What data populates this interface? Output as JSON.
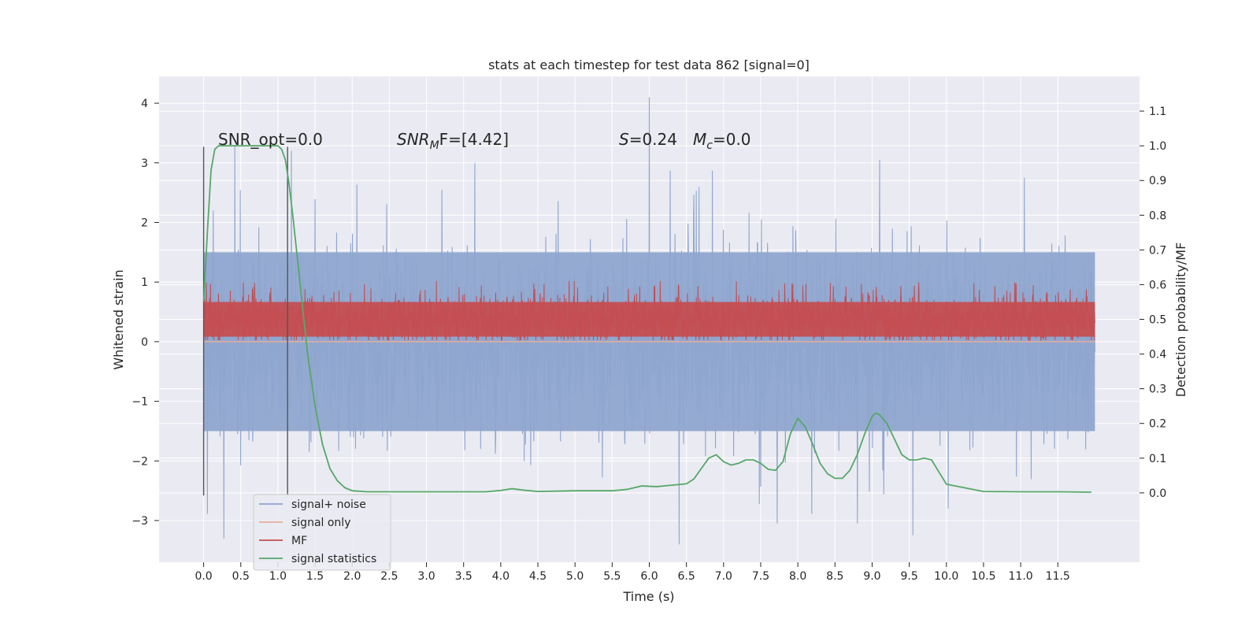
{
  "chart_data": {
    "type": "line",
    "title": "stats at each timestep for test data 862 [signal=0]",
    "xlabel": "Time (s)",
    "ylabel_left": "Whitened strain",
    "ylabel_right": "Detection probability/MF",
    "xlim": [
      -0.6,
      12.6
    ],
    "ylim_left": [
      -3.7,
      4.45
    ],
    "ylim_right": [
      -0.2,
      1.2
    ],
    "x_ticks": [
      0.0,
      0.5,
      1.0,
      1.5,
      2.0,
      2.5,
      3.0,
      3.5,
      4.0,
      4.5,
      5.0,
      5.5,
      6.0,
      6.5,
      7.0,
      7.5,
      8.0,
      8.5,
      9.0,
      9.5,
      10.0,
      10.5,
      11.0,
      11.5
    ],
    "x_tick_labels": [
      "0.0",
      "0.5",
      "1.0",
      "1.5",
      "2.0",
      "2.5",
      "3.0",
      "3.5",
      "4.0",
      "4.5",
      "5.0",
      "5.5",
      "6.0",
      "6.5",
      "7.0",
      "7.5",
      "8.0",
      "8.5",
      "9.0",
      "9.5",
      "10.0",
      "10.5",
      "11.0",
      "11.5"
    ],
    "y_left_ticks": [
      -3,
      -2,
      -1,
      0,
      1,
      2,
      3,
      4
    ],
    "y_left_tick_labels": [
      "−3",
      "−2",
      "−1",
      "0",
      "1",
      "2",
      "3",
      "4"
    ],
    "y_right_ticks": [
      0.0,
      0.1,
      0.2,
      0.3,
      0.4,
      0.5,
      0.6,
      0.7,
      0.8,
      0.9,
      1.0,
      1.1
    ],
    "y_right_tick_labels": [
      "0.0",
      "0.1",
      "0.2",
      "0.3",
      "0.4",
      "0.5",
      "0.6",
      "0.7",
      "0.8",
      "0.9",
      "1.0",
      "1.1"
    ],
    "grid": true,
    "legend_position": "bottom-left",
    "annotations": {
      "snr_opt": "SNR_opt=0.0",
      "snr_mf_base": "SNR",
      "snr_mf_sub": "M",
      "snr_mf_rest": "F=[4.42]",
      "s_sym": "S",
      "s_val": "=0.24",
      "mc_sym": "M",
      "mc_sub": "c",
      "mc_val": "=0.0"
    },
    "vertical_markers": [
      0.0,
      1.13
    ],
    "series": [
      {
        "name": "signal+ noise",
        "color": "#8fa6cf",
        "axis": "left",
        "kind": "noise",
        "x_range": [
          0.0,
          12.0
        ],
        "typical_range": [
          -1.5,
          1.5
        ],
        "max": 4.1,
        "min": -3.4,
        "spikes": [
          [
            6.0,
            4.1
          ],
          [
            0.42,
            3.3
          ],
          [
            3.65,
            3.0
          ],
          [
            1.18,
            3.2
          ],
          [
            9.1,
            3.05
          ],
          [
            11.05,
            2.75
          ],
          [
            6.4,
            -3.4
          ],
          [
            0.27,
            -3.3
          ],
          [
            9.55,
            -3.25
          ],
          [
            7.72,
            -3.05
          ],
          [
            8.8,
            -3.05
          ]
        ]
      },
      {
        "name": "signal only",
        "color": "#e5ae98",
        "axis": "left",
        "kind": "flat",
        "x_range": [
          0.0,
          12.0
        ],
        "value": 0.0
      },
      {
        "name": "MF",
        "color": "#c44e52",
        "axis": "right",
        "kind": "band",
        "x_range": [
          0.0,
          12.0
        ],
        "typical_range": [
          0.45,
          0.55
        ],
        "max": 0.61,
        "min": 0.44
      },
      {
        "name": "signal statistics",
        "color": "#55a868",
        "axis": "right",
        "kind": "curve",
        "x": [
          0.0,
          0.05,
          0.1,
          0.15,
          0.2,
          0.3,
          0.5,
          0.7,
          0.9,
          1.0,
          1.05,
          1.1,
          1.15,
          1.2,
          1.25,
          1.3,
          1.35,
          1.4,
          1.5,
          1.6,
          1.7,
          1.8,
          1.9,
          2.0,
          2.2,
          2.5,
          3.0,
          3.5,
          3.8,
          4.0,
          4.15,
          4.3,
          4.5,
          5.0,
          5.5,
          5.7,
          5.9,
          6.1,
          6.3,
          6.5,
          6.6,
          6.7,
          6.8,
          6.9,
          7.0,
          7.1,
          7.2,
          7.3,
          7.4,
          7.5,
          7.6,
          7.7,
          7.8,
          7.9,
          8.0,
          8.1,
          8.2,
          8.3,
          8.4,
          8.5,
          8.6,
          8.7,
          8.8,
          8.9,
          9.0,
          9.05,
          9.1,
          9.2,
          9.3,
          9.4,
          9.5,
          9.6,
          9.7,
          9.8,
          9.9,
          10.0,
          10.5,
          11.0,
          11.5,
          11.95
        ],
        "y": [
          0.55,
          0.75,
          0.93,
          0.99,
          1.0,
          1.0,
          1.0,
          1.0,
          1.0,
          1.0,
          0.99,
          0.96,
          0.89,
          0.8,
          0.7,
          0.6,
          0.5,
          0.4,
          0.25,
          0.14,
          0.07,
          0.035,
          0.015,
          0.006,
          0.003,
          0.003,
          0.003,
          0.003,
          0.003,
          0.007,
          0.012,
          0.008,
          0.004,
          0.006,
          0.006,
          0.01,
          0.02,
          0.018,
          0.022,
          0.026,
          0.04,
          0.07,
          0.1,
          0.11,
          0.09,
          0.08,
          0.085,
          0.095,
          0.095,
          0.085,
          0.068,
          0.065,
          0.09,
          0.17,
          0.215,
          0.19,
          0.14,
          0.085,
          0.055,
          0.042,
          0.042,
          0.065,
          0.11,
          0.17,
          0.22,
          0.23,
          0.225,
          0.2,
          0.155,
          0.11,
          0.095,
          0.095,
          0.1,
          0.095,
          0.06,
          0.025,
          0.004,
          0.003,
          0.003,
          0.002
        ]
      }
    ]
  }
}
